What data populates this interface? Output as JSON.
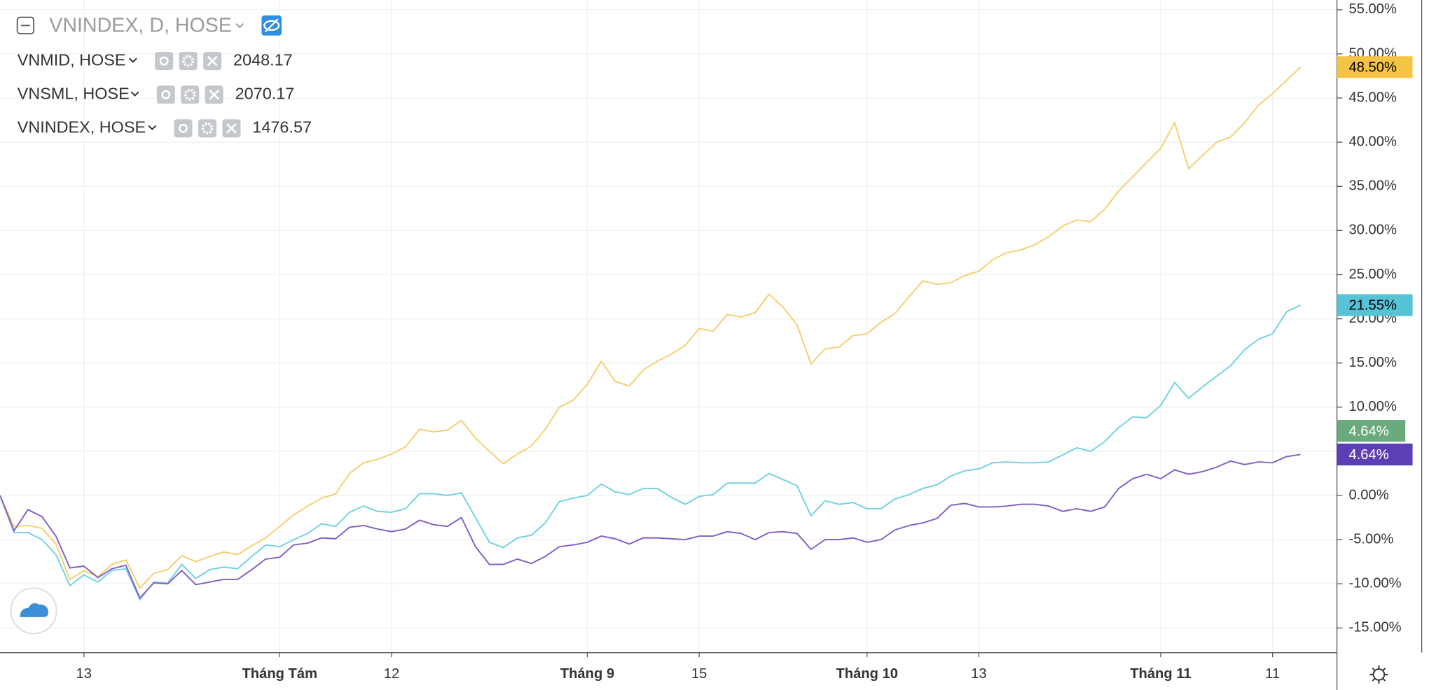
{
  "chart_data": {
    "type": "line",
    "title": "VNINDEX, D, HOSE",
    "main_series": {
      "value": 4.64,
      "value_label": "4.64%",
      "color": "#6aaa7c"
    },
    "categories": [
      null,
      null,
      null,
      null,
      null,
      null,
      "13",
      null,
      null,
      null,
      null,
      null,
      null,
      null,
      null,
      null,
      null,
      null,
      null,
      null,
      "Tháng Tám",
      null,
      null,
      null,
      null,
      null,
      null,
      null,
      "12",
      null,
      null,
      null,
      null,
      null,
      null,
      null,
      null,
      null,
      null,
      null,
      null,
      null,
      "Tháng 9",
      null,
      null,
      null,
      null,
      null,
      null,
      null,
      "15",
      null,
      null,
      null,
      null,
      null,
      null,
      null,
      null,
      null,
      null,
      null,
      "Tháng 10",
      null,
      null,
      null,
      null,
      null,
      null,
      null,
      "13",
      null,
      null,
      null,
      null,
      null,
      null,
      null,
      null,
      null,
      null,
      null,
      null,
      "Tháng 11",
      null,
      null,
      null,
      null,
      null,
      null,
      null,
      "11",
      null,
      null
    ],
    "series": [
      {
        "name": "VNMID, HOSE",
        "legend_value": "2048.17",
        "color": "#72d2e2",
        "label_color": "#56c3d6",
        "last_label": "21.55%",
        "values": [
          0,
          -4.2,
          -4.2,
          -5.0,
          -6.7,
          -10.2,
          -9.0,
          -9.8,
          -8.5,
          -8.3,
          -11.8,
          -9.8,
          -9.9,
          -7.8,
          -9.4,
          -8.4,
          -8.1,
          -8.3,
          -6.9,
          -5.6,
          -5.8,
          -5.0,
          -4.3,
          -3.2,
          -3.5,
          -1.9,
          -1.2,
          -1.8,
          -1.9,
          -1.5,
          0.2,
          0.2,
          0.0,
          0.3,
          -2.5,
          -5.3,
          -5.9,
          -4.8,
          -4.5,
          -3.1,
          -0.7,
          -0.3,
          0.0,
          1.3,
          0.4,
          0.1,
          0.8,
          0.8,
          -0.2,
          -1.0,
          -0.1,
          0.1,
          1.4,
          1.4,
          1.4,
          2.5,
          1.8,
          1.1,
          -2.3,
          -0.6,
          -1.0,
          -0.8,
          -1.5,
          -1.5,
          -0.4,
          0.1,
          0.8,
          1.2,
          2.2,
          2.8,
          3.0,
          3.7,
          3.8,
          3.7,
          3.7,
          3.8,
          4.6,
          5.4,
          5.0,
          6.1,
          7.7,
          8.9,
          8.8,
          10.2,
          12.8,
          11.0,
          12.3,
          13.5,
          14.7,
          16.5,
          17.7,
          18.3,
          20.8,
          21.55
        ]
      },
      {
        "name": "VNSML, HOSE",
        "legend_value": "2070.17",
        "color": "#f6cf70",
        "label_color": "#f5c445",
        "last_label": "48.50%",
        "values": [
          0,
          -3.5,
          -3.4,
          -3.7,
          -5.5,
          -9.5,
          -8.5,
          -9.2,
          -7.8,
          -7.3,
          -10.5,
          -8.8,
          -8.4,
          -6.8,
          -7.5,
          -6.9,
          -6.4,
          -6.7,
          -5.7,
          -4.8,
          -3.5,
          -2.2,
          -1.2,
          -0.3,
          0.2,
          2.5,
          3.7,
          4.1,
          4.7,
          5.5,
          7.5,
          7.2,
          7.4,
          8.5,
          6.5,
          5.0,
          3.6,
          4.7,
          5.6,
          7.5,
          10.0,
          10.8,
          12.6,
          15.2,
          12.9,
          12.4,
          14.2,
          15.2,
          16.0,
          17.0,
          18.9,
          18.6,
          20.5,
          20.2,
          20.7,
          22.8,
          21.3,
          19.3,
          14.9,
          16.6,
          16.8,
          18.1,
          18.3,
          19.6,
          20.6,
          22.5,
          24.3,
          23.9,
          24.1,
          24.9,
          25.4,
          26.7,
          27.5,
          27.8,
          28.4,
          29.3,
          30.5,
          31.2,
          31.0,
          32.4,
          34.5,
          36.1,
          37.7,
          39.3,
          42.2,
          37.0,
          38.5,
          40.0,
          40.6,
          42.2,
          44.2,
          45.5,
          47.0,
          48.5
        ]
      },
      {
        "name": "VNINDEX, HOSE",
        "legend_value": "1476.57",
        "color": "#8161c6",
        "label_color": "#5c3fb4",
        "last_label": "4.64%",
        "values": [
          0,
          -4.0,
          -1.6,
          -2.4,
          -4.6,
          -8.2,
          -8.0,
          -9.3,
          -8.3,
          -7.9,
          -11.6,
          -9.9,
          -10.0,
          -8.5,
          -10.1,
          -9.8,
          -9.5,
          -9.5,
          -8.4,
          -7.2,
          -7.0,
          -5.6,
          -5.4,
          -4.8,
          -4.9,
          -3.6,
          -3.4,
          -3.8,
          -4.1,
          -3.8,
          -2.8,
          -3.3,
          -3.5,
          -2.5,
          -5.8,
          -7.8,
          -7.8,
          -7.2,
          -7.7,
          -6.9,
          -5.8,
          -5.6,
          -5.3,
          -4.6,
          -4.9,
          -5.5,
          -4.8,
          -4.8,
          -4.9,
          -5.0,
          -4.6,
          -4.6,
          -4.1,
          -4.3,
          -5.0,
          -4.2,
          -4.1,
          -4.3,
          -6.1,
          -5.0,
          -5.0,
          -4.8,
          -5.3,
          -5.0,
          -3.9,
          -3.4,
          -3.1,
          -2.6,
          -1.1,
          -0.9,
          -1.3,
          -1.3,
          -1.2,
          -1.0,
          -1.0,
          -1.2,
          -1.8,
          -1.5,
          -1.8,
          -1.3,
          0.8,
          1.9,
          2.4,
          1.9,
          2.9,
          2.4,
          2.7,
          3.2,
          3.9,
          3.5,
          3.8,
          3.7,
          4.4,
          4.64
        ]
      }
    ],
    "ylim": [
      -17.8,
      56.1
    ],
    "yticks": [
      {
        "value": -15,
        "label": "-15.00%"
      },
      {
        "value": -10,
        "label": "-10.00%"
      },
      {
        "value": -5,
        "label": "-5.00%"
      },
      {
        "value": 0,
        "label": "0.00%"
      },
      {
        "value": 5,
        "label": "5.00%"
      },
      {
        "value": 10,
        "label": "10.00%"
      },
      {
        "value": 15,
        "label": "15.00%"
      },
      {
        "value": 20,
        "label": "20.00%"
      },
      {
        "value": 25,
        "label": "25.00%"
      },
      {
        "value": 30,
        "label": "30.00%"
      },
      {
        "value": 35,
        "label": "35.00%"
      },
      {
        "value": 40,
        "label": "40.00%"
      },
      {
        "value": 45,
        "label": "45.00%"
      },
      {
        "value": 50,
        "label": "50.00%"
      },
      {
        "value": 55,
        "label": "55.00%"
      }
    ],
    "grid": true
  }
}
